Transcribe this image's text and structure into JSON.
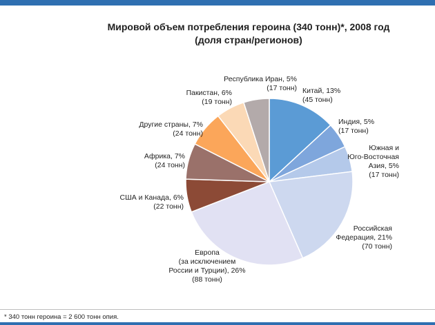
{
  "chart_data": {
    "type": "pie",
    "title": "Мировой объем потребления героина (340 тонн)*, 2008 год",
    "subtitle": "(доля стран/регионов)",
    "unit": "тонн",
    "slices": [
      {
        "label_lines": [
          "Китай, 13%",
          "(45 тонн)"
        ],
        "percent": 13,
        "value": 45,
        "color": "#5b9bd5"
      },
      {
        "label_lines": [
          "Индия, 5%",
          "(17 тонн)"
        ],
        "percent": 5,
        "value": 17,
        "color": "#7ea6dc"
      },
      {
        "label_lines": [
          "Южная и",
          "Юго-Восточная",
          "Азия, 5%",
          "(17 тонн)"
        ],
        "percent": 5,
        "value": 17,
        "color": "#b4c9ea"
      },
      {
        "label_lines": [
          "Российская",
          "Федерация, 21%",
          "(70 тонн)"
        ],
        "percent": 21,
        "value": 70,
        "color": "#cdd8ef"
      },
      {
        "label_lines": [
          "Европа",
          "(за исключением",
          "России и Турции), 26%",
          "(88 тонн)"
        ],
        "percent": 26,
        "value": 88,
        "color": "#e1e1f3"
      },
      {
        "label_lines": [
          "США и Канада, 6%",
          "(22 тонн)"
        ],
        "percent": 6,
        "value": 22,
        "color": "#8c4a36"
      },
      {
        "label_lines": [
          "Африка, 7%",
          "(24 тонн)"
        ],
        "percent": 7,
        "value": 24,
        "color": "#9a716a"
      },
      {
        "label_lines": [
          "Другие страны, 7%",
          "(24 тонн)"
        ],
        "percent": 7,
        "value": 24,
        "color": "#fba65a"
      },
      {
        "label_lines": [
          "Пакистан, 6%",
          "(19 тонн)"
        ],
        "percent": 6,
        "value": 19,
        "color": "#fbd9b6"
      },
      {
        "label_lines": [
          "Республика Иран, 5%",
          "(17 тонн)"
        ],
        "percent": 5,
        "value": 17,
        "color": "#b3aaaa"
      }
    ]
  },
  "footnote": "* 340 тонн героина = 2 600 тонн опия."
}
